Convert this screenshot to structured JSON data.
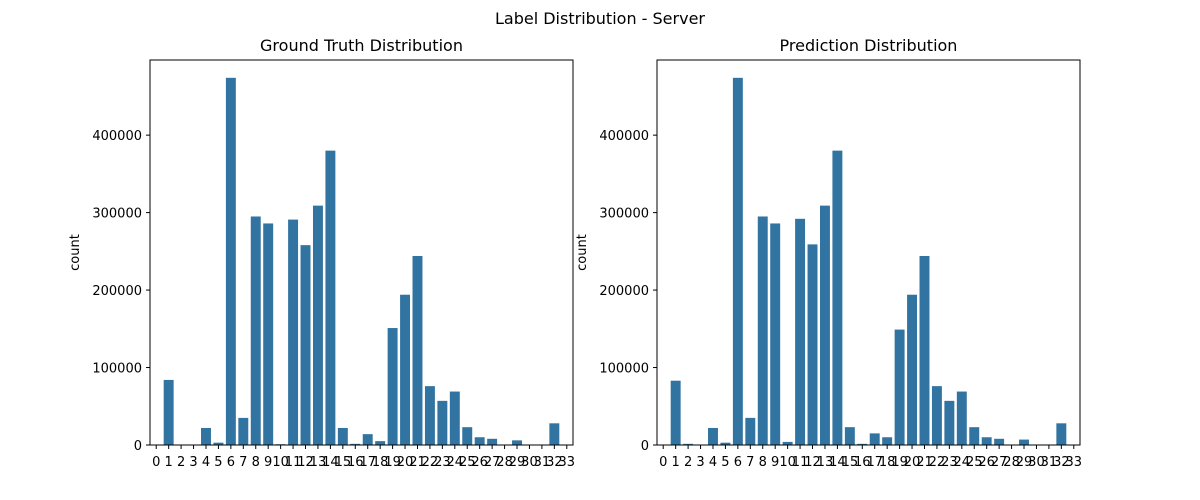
{
  "figure": {
    "suptitle": "Label Distribution - Server"
  },
  "chart_data": [
    {
      "type": "bar",
      "title": "Ground Truth Distribution",
      "xlabel": "",
      "ylabel": "count",
      "bar_color": "#3274a1",
      "ylim": [
        0,
        497000
      ],
      "yticks": [
        0,
        100000,
        200000,
        300000,
        400000
      ],
      "categories": [
        "0",
        "1",
        "2",
        "3",
        "4",
        "5",
        "6",
        "7",
        "8",
        "9",
        "10",
        "11",
        "12",
        "13",
        "14",
        "15",
        "16",
        "17",
        "18",
        "19",
        "20",
        "21",
        "22",
        "23",
        "24",
        "25",
        "26",
        "27",
        "28",
        "29",
        "30",
        "31",
        "32",
        "33"
      ],
      "values": [
        0,
        84000,
        0,
        0,
        22000,
        3000,
        474000,
        35000,
        295000,
        286000,
        1000,
        291000,
        258000,
        309000,
        380000,
        22000,
        1500,
        14000,
        5000,
        151000,
        194000,
        244000,
        76000,
        57000,
        69000,
        23000,
        10000,
        8000,
        0,
        6000,
        0,
        0,
        28000,
        0
      ]
    },
    {
      "type": "bar",
      "title": "Prediction Distribution",
      "xlabel": "",
      "ylabel": "count",
      "bar_color": "#3274a1",
      "ylim": [
        0,
        497000
      ],
      "yticks": [
        0,
        100000,
        200000,
        300000,
        400000
      ],
      "categories": [
        "0",
        "1",
        "2",
        "3",
        "4",
        "5",
        "6",
        "7",
        "8",
        "9",
        "10",
        "11",
        "12",
        "13",
        "14",
        "15",
        "16",
        "17",
        "18",
        "19",
        "20",
        "21",
        "22",
        "23",
        "24",
        "25",
        "26",
        "27",
        "28",
        "29",
        "30",
        "31",
        "32",
        "33"
      ],
      "values": [
        0,
        83000,
        1500,
        0,
        22000,
        3000,
        474000,
        35000,
        295000,
        286000,
        4000,
        292000,
        259000,
        309000,
        380000,
        23000,
        1500,
        15000,
        10000,
        149000,
        194000,
        244000,
        76000,
        57000,
        69000,
        23000,
        10000,
        8000,
        0,
        7000,
        0,
        0,
        28000,
        0
      ]
    }
  ]
}
